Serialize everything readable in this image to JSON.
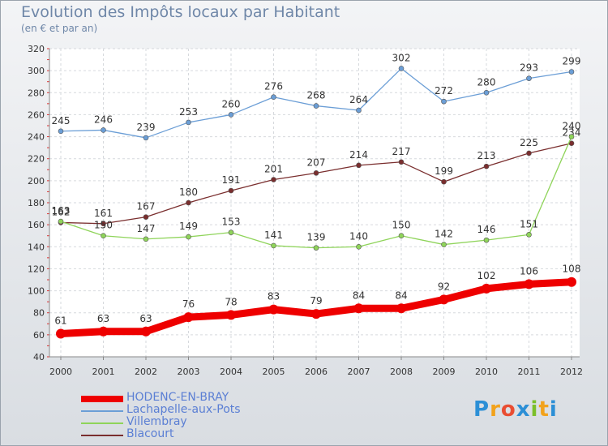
{
  "title": "Evolution des Impôts locaux par Habitant",
  "subtitle": "(en € et par an)",
  "logo": {
    "letters": [
      "P",
      "r",
      "o",
      "x",
      "i",
      "t",
      "i"
    ],
    "colors": [
      "#2c8fd6",
      "#f2a21c",
      "#e94d32",
      "#2c8fd6",
      "#7bbf2a",
      "#f2a21c",
      "#2c8fd6"
    ]
  },
  "chart_data": {
    "type": "line",
    "x": [
      "2000",
      "2001",
      "2002",
      "2003",
      "2004",
      "2005",
      "2006",
      "2007",
      "2008",
      "2009",
      "2010",
      "2011",
      "2012"
    ],
    "ylim": [
      40,
      320
    ],
    "yticks": [
      40,
      60,
      80,
      100,
      120,
      140,
      160,
      180,
      200,
      220,
      240,
      260,
      280,
      300,
      320
    ],
    "grid": true,
    "legend_placement": "bottom",
    "series": [
      {
        "name": "Lachapelle-aux-Pots",
        "color": "#6b9ed6",
        "values": [
          245,
          246,
          239,
          253,
          260,
          276,
          268,
          264,
          302,
          272,
          280,
          293,
          299
        ]
      },
      {
        "name": "Blacourt",
        "color": "#7a2e2e",
        "values": [
          162,
          161,
          167,
          180,
          191,
          201,
          207,
          214,
          217,
          199,
          213,
          225,
          234
        ]
      },
      {
        "name": "Villembray",
        "color": "#8fd45a",
        "values": [
          163,
          150,
          147,
          149,
          153,
          141,
          139,
          140,
          150,
          142,
          146,
          151,
          240
        ]
      },
      {
        "name": "HODENC-EN-BRAY",
        "color": "#ee0000",
        "values": [
          61,
          63,
          63,
          76,
          78,
          83,
          79,
          84,
          84,
          92,
          102,
          106,
          108
        ]
      }
    ],
    "legend": [
      {
        "name": "HODENC-EN-BRAY",
        "color": "#ee0000",
        "text_color": "#5b7fd4",
        "thick": true
      },
      {
        "name": "Lachapelle-aux-Pots",
        "color": "#6b9ed6",
        "text_color": "#5b7fd4",
        "thick": false
      },
      {
        "name": "Villembray",
        "color": "#8fd45a",
        "text_color": "#5b7fd4",
        "thick": false
      },
      {
        "name": "Blacourt",
        "color": "#7a2e2e",
        "text_color": "#5b7fd4",
        "thick": false
      }
    ]
  }
}
